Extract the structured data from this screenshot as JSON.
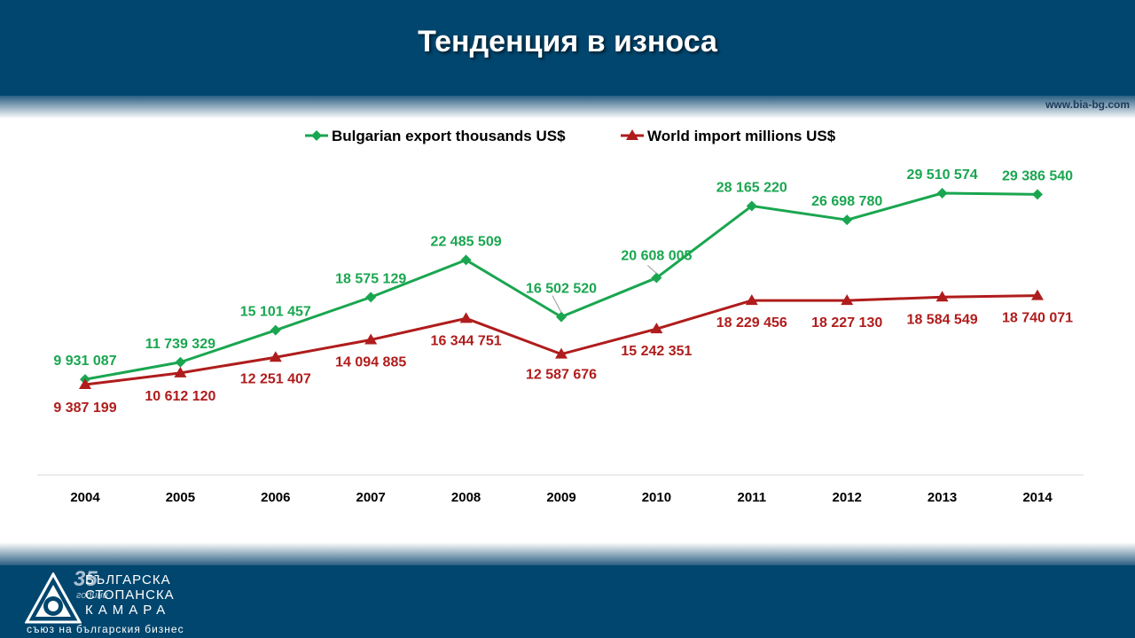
{
  "page": {
    "title": "Тенденция в износа",
    "website": "www.bia-bg.com"
  },
  "logo": {
    "years_number": "35",
    "years_word": "години",
    "line1": "БЪЛГАРСКА",
    "line2": "СТОПАНСКА",
    "line3": "КАМАРА",
    "subtitle": "съюз на българския бизнес"
  },
  "colors": {
    "header_bg": "#00466e",
    "export_series": "#1aa650",
    "import_series": "#b01c1c"
  },
  "chart_data": {
    "type": "line",
    "categories": [
      "2004",
      "2005",
      "2006",
      "2007",
      "2008",
      "2009",
      "2010",
      "2011",
      "2012",
      "2013",
      "2014"
    ],
    "series": [
      {
        "name": "Bulgarian export thousands US$",
        "marker": "diamond",
        "values": [
          9931087,
          11739329,
          15101457,
          18575129,
          22485509,
          16502520,
          20608005,
          28165220,
          26698780,
          29510574,
          29386540
        ],
        "labels": [
          "9 931 087",
          "11 739 329",
          "15 101 457",
          "18 575 129",
          "22 485 509",
          "16 502 520",
          "20 608 005",
          "28 165 220",
          "26 698 780",
          "29 510 574",
          "29 386 540"
        ]
      },
      {
        "name": "World import millions US$",
        "marker": "triangle",
        "values": [
          9387199,
          10612120,
          12251407,
          14094885,
          16344751,
          12587676,
          15242351,
          18229456,
          18227130,
          18584549,
          18740071
        ],
        "labels": [
          "9 387 199",
          "10 612 120",
          "12 251 407",
          "14 094 885",
          "16 344 751",
          "12 587 676",
          "15 242 351",
          "18 229 456",
          "18 227 130",
          "18 584 549",
          "18 740 071"
        ]
      }
    ],
    "legend": "top",
    "grid": false
  }
}
